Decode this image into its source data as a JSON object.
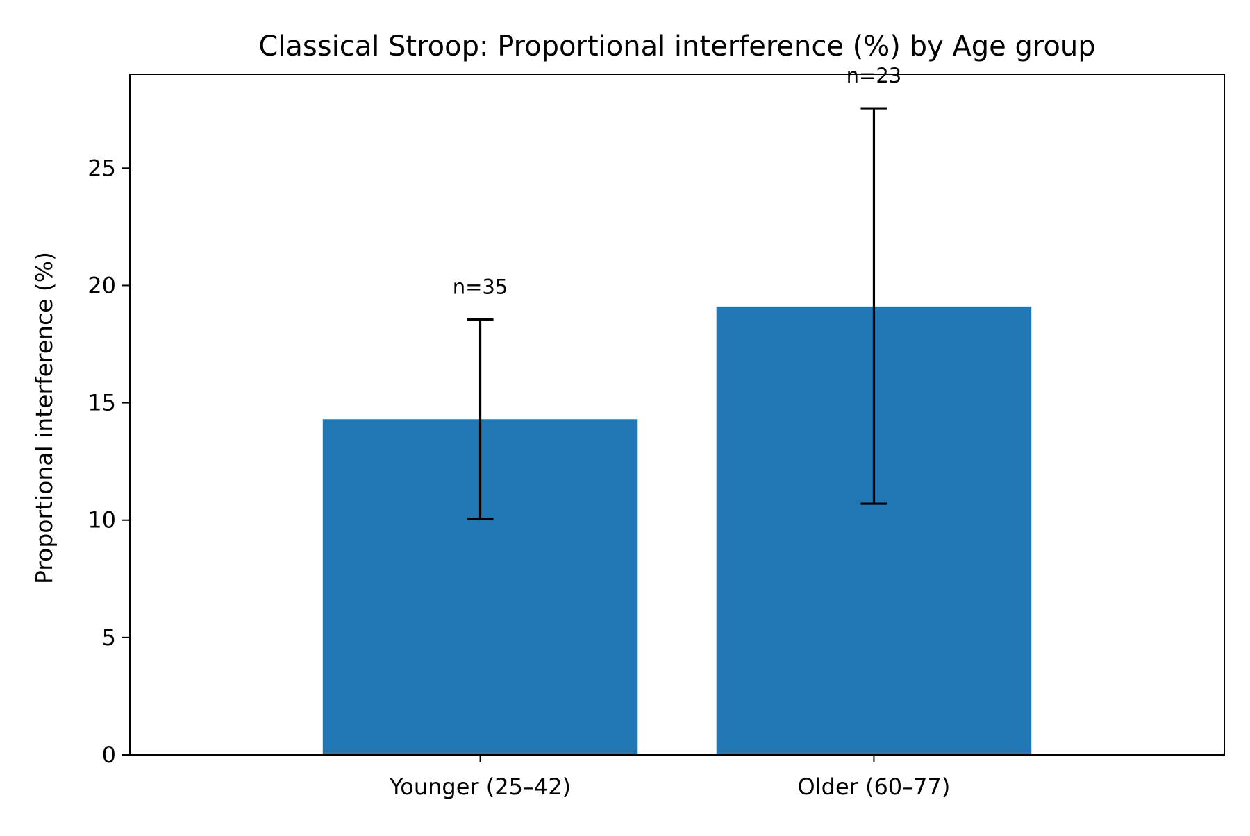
{
  "chart_data": {
    "type": "bar",
    "title": "Classical Stroop: Proportional interference (%) by Age group",
    "xlabel": "",
    "ylabel": "Proportional interference (%)",
    "categories": [
      "Younger (25–42)",
      "Older (60–77)"
    ],
    "values": [
      14.3,
      19.1
    ],
    "error_low": [
      10.05,
      10.7
    ],
    "error_high": [
      18.55,
      27.55
    ],
    "annotations": [
      "n=35",
      "n=23"
    ],
    "ylim": [
      0,
      29
    ],
    "yticks": [
      0,
      5,
      10,
      15,
      20,
      25
    ],
    "ytick_labels": [
      "0",
      "5",
      "10",
      "15",
      "20",
      "25"
    ],
    "grid": false,
    "bar_color": "#2077b4",
    "error_bar_color": "#000000"
  }
}
